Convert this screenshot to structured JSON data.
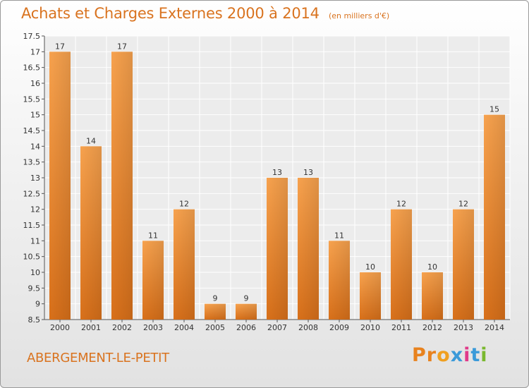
{
  "page": {
    "commune": "ABERGEMENT-LE-PETIT",
    "logo_text": "Proxiti",
    "logo_colors": [
      "#e8821e",
      "#e8821e",
      "#f0a020",
      "#3a9ad9",
      "#e03a8a",
      "#3a9ad9",
      "#7ab82e"
    ]
  },
  "chart_data": {
    "type": "bar",
    "title": "Achats et Charges Externes 2000 à 2014",
    "unit": "(en milliers d'€)",
    "categories": [
      "2000",
      "2001",
      "2002",
      "2003",
      "2004",
      "2005",
      "2006",
      "2007",
      "2008",
      "2009",
      "2010",
      "2011",
      "2012",
      "2013",
      "2014"
    ],
    "values": [
      17,
      14,
      17,
      11,
      12,
      9,
      9,
      13,
      13,
      11,
      10,
      12,
      10,
      12,
      15
    ],
    "ylim": [
      8.5,
      17.5
    ],
    "yticks": [
      "8.5",
      "9",
      "9.5",
      "10",
      "10.5",
      "11",
      "11.5",
      "12",
      "12.5",
      "13",
      "13.5",
      "14",
      "14.5",
      "15",
      "15.5",
      "16",
      "16.5",
      "17",
      "17.5"
    ],
    "grid": true,
    "bar_color": "#f08c28"
  }
}
